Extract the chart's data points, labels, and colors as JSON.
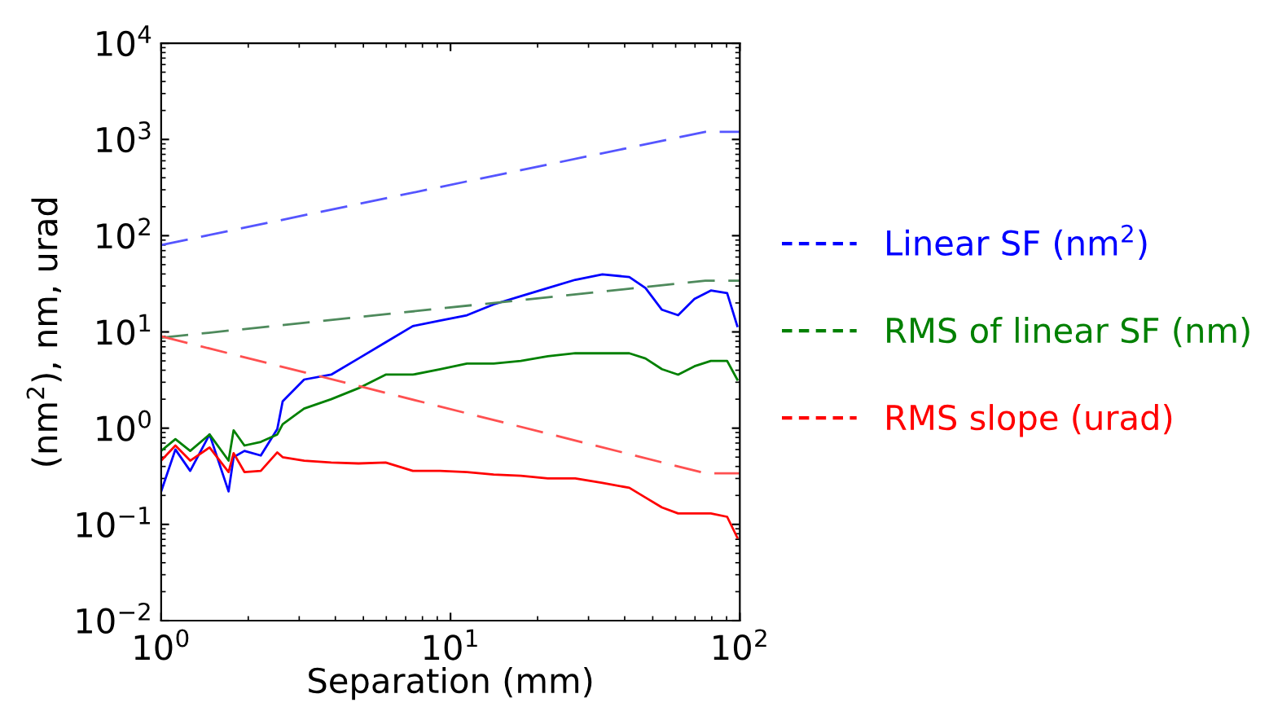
{
  "chart_data": {
    "type": "line",
    "xlabel": "Separation (mm)",
    "ylabel": "(nm$^{2}$), nm, urad",
    "log": "xy",
    "xlim": [
      1,
      100
    ],
    "ylim": [
      0.01,
      10000
    ],
    "xticks": [
      {
        "value": 1,
        "label": "10$^{0}$"
      },
      {
        "value": 10,
        "label": "10$^{1}$"
      },
      {
        "value": 100,
        "label": "10$^{2}$"
      }
    ],
    "yticks": [
      {
        "value": 0.01,
        "label": "10$^{−2}$"
      },
      {
        "value": 0.1,
        "label": "10$^{−1}$"
      },
      {
        "value": 1,
        "label": "10$^{0}$"
      },
      {
        "value": 10,
        "label": "10$^{1}$"
      },
      {
        "value": 100,
        "label": "10$^{2}$"
      },
      {
        "value": 1000,
        "label": "10$^{3}$"
      },
      {
        "value": 10000,
        "label": "10$^{4}$"
      }
    ],
    "grid": false,
    "legend": "right",
    "marker": "none",
    "series": [
      {
        "name": "Linear SF (nm$^{2}$)",
        "color": "#0000ff",
        "line_style": "solid",
        "x": [
          1,
          1.12,
          1.26,
          1.47,
          1.71,
          1.78,
          1.94,
          2.21,
          2.52,
          2.63,
          3.12,
          3.87,
          4.81,
          5.97,
          7.41,
          9.2,
          11.4,
          14.1,
          17.5,
          21.7,
          27,
          33.5,
          41.5,
          47.2,
          53.8,
          61.2,
          69.7,
          79.4,
          90.4,
          98
        ],
        "values": [
          0.22,
          0.6,
          0.36,
          0.86,
          0.22,
          0.5,
          0.58,
          0.52,
          0.98,
          1.9,
          3.2,
          3.6,
          5.3,
          7.8,
          11.5,
          13.1,
          14.9,
          19.3,
          23.5,
          28.6,
          34.8,
          39.6,
          37.2,
          28.6,
          17,
          14.9,
          22,
          26.9,
          25.3,
          11.5
        ]
      },
      {
        "name": "RMS of linear SF (nm)",
        "color": "#008000",
        "line_style": "solid",
        "x": [
          1,
          1.12,
          1.26,
          1.47,
          1.71,
          1.78,
          1.94,
          2.21,
          2.52,
          2.63,
          3.12,
          3.87,
          4.81,
          5.97,
          7.41,
          9.2,
          11.4,
          14.1,
          17.5,
          21.7,
          27,
          33.5,
          41.5,
          47.2,
          53.8,
          61.2,
          69.7,
          79.4,
          90.4,
          98
        ],
        "values": [
          0.58,
          0.77,
          0.58,
          0.86,
          0.46,
          0.95,
          0.66,
          0.72,
          0.86,
          1.1,
          1.6,
          2.0,
          2.6,
          3.6,
          3.6,
          4.1,
          4.7,
          4.7,
          5.0,
          5.6,
          6.0,
          6.0,
          6.0,
          5.3,
          4.1,
          3.6,
          4.4,
          5.0,
          5.0,
          3.2
        ]
      },
      {
        "name": "RMS slope (urad)",
        "color": "#ff0000",
        "line_style": "solid",
        "x": [
          1,
          1.12,
          1.26,
          1.47,
          1.71,
          1.78,
          1.94,
          2.21,
          2.52,
          2.63,
          3.12,
          3.87,
          4.81,
          5.97,
          7.41,
          9.2,
          11.4,
          14.1,
          17.5,
          21.7,
          27,
          33.5,
          41.5,
          47.2,
          53.8,
          61.2,
          69.7,
          79.4,
          90.4,
          98
        ],
        "values": [
          0.46,
          0.66,
          0.46,
          0.63,
          0.35,
          0.55,
          0.35,
          0.36,
          0.56,
          0.5,
          0.46,
          0.44,
          0.43,
          0.44,
          0.36,
          0.36,
          0.35,
          0.33,
          0.32,
          0.3,
          0.3,
          0.27,
          0.24,
          0.19,
          0.15,
          0.13,
          0.13,
          0.13,
          0.12,
          0.073
        ]
      },
      {
        "color": "#5555ff",
        "line_style": "dashed",
        "x": [
          1,
          76,
          100
        ],
        "values": [
          80,
          1200,
          1200
        ]
      },
      {
        "color": "#4e8a5c",
        "line_style": "dashed",
        "x": [
          1,
          76,
          100
        ],
        "values": [
          8.7,
          34,
          34
        ]
      },
      {
        "color": "#ff5050",
        "line_style": "dashed",
        "x": [
          1,
          76,
          100
        ],
        "values": [
          9,
          0.34,
          0.34
        ]
      }
    ]
  }
}
